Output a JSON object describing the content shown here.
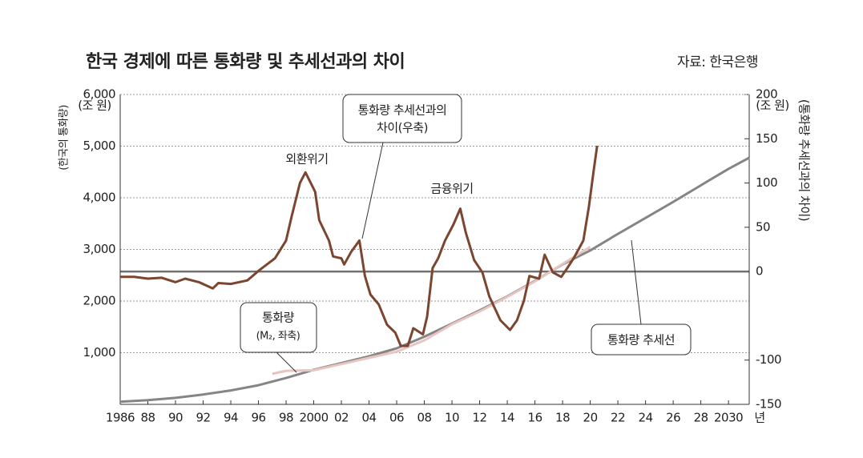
{
  "chart_data": {
    "type": "line",
    "title": "한국 경제에 따른 통화량 및 추세선과의 차이",
    "source": "자료: 한국은행",
    "y_label": "(한국의 통화량)",
    "y_unit": "(조 원)",
    "y2_label": "(통화량 추세선과의 차이)",
    "y2_unit": "(조 원)",
    "x_unit": "년",
    "annotations": [
      "외환위기",
      "금융위기"
    ],
    "callouts": [
      [
        "통화량 추세선과의",
        "차이(우축)"
      ],
      [
        "통화량",
        "(M₂, 좌축)"
      ],
      [
        "통화량 추세선"
      ]
    ],
    "xlim": [
      1986,
      2031.5
    ],
    "xticks": [
      {
        "value": 1986,
        "label": "1986"
      },
      {
        "value": 1988,
        "label": "88"
      },
      {
        "value": 1990,
        "label": "90"
      },
      {
        "value": 1992,
        "label": "92"
      },
      {
        "value": 1994,
        "label": "94"
      },
      {
        "value": 1996,
        "label": "96"
      },
      {
        "value": 1998,
        "label": "98"
      },
      2000,
      {
        "value": 2002,
        "label": "02"
      },
      {
        "value": 2004,
        "label": "04"
      },
      {
        "value": 2006,
        "label": "06"
      },
      {
        "value": 2008,
        "label": "08"
      },
      {
        "value": 2010,
        "label": "10"
      },
      {
        "value": 2012,
        "label": "12"
      },
      {
        "value": 2014,
        "label": "14"
      },
      {
        "value": 2016,
        "label": "16"
      },
      {
        "value": 2018,
        "label": "18"
      },
      {
        "value": 2020,
        "label": "20"
      },
      {
        "value": 2022,
        "label": "22"
      },
      {
        "value": 2024,
        "label": "24"
      },
      {
        "value": 2026,
        "label": "26"
      },
      {
        "value": 2028,
        "label": "28"
      },
      2030
    ],
    "ylim": [
      0,
      6000
    ],
    "yticks": [
      {
        "value": 1000,
        "label": "1,000"
      },
      {
        "value": 2000,
        "label": "2,000"
      },
      {
        "value": 3000,
        "label": "3,000"
      },
      {
        "value": 4000,
        "label": "4,000"
      },
      {
        "value": 5000,
        "label": "5,000"
      },
      {
        "value": 6000,
        "label": "6,000"
      }
    ],
    "y2lim": [
      -150,
      200
    ],
    "y2ticks": [
      200,
      150,
      100,
      50,
      0,
      -100,
      -150
    ],
    "grid": true,
    "series": [
      {
        "name": "통화량 추세선",
        "color": "#858585",
        "x": [
          1986,
          1988,
          1990,
          1992,
          1994,
          1996,
          1998,
          2000,
          2002,
          2004,
          2006,
          2008,
          2010,
          2012,
          2014,
          2016,
          2018,
          2020,
          2022,
          2024,
          2026,
          2028,
          2030,
          2031.5
        ],
        "values": [
          50,
          80,
          125,
          190,
          270,
          370,
          510,
          670,
          800,
          930,
          1085,
          1310,
          1565,
          1820,
          2090,
          2390,
          2710,
          2980,
          3300,
          3610,
          3920,
          4240,
          4560,
          4775
        ]
      },
      {
        "name": "통화량",
        "color": "#e8c4c0",
        "x": [
          1997,
          1998,
          2000,
          2002,
          2004,
          2006,
          2008,
          2010,
          2012,
          2014,
          2016,
          2018,
          2020
        ],
        "values": [
          590,
          650,
          660,
          780,
          900,
          1020,
          1240,
          1550,
          1800,
          2080,
          2380,
          2720,
          3050
        ]
      },
      {
        "name": "차이",
        "color": "#7b4530",
        "axis": "y2",
        "x": [
          1986,
          1987,
          1988,
          1989,
          1990,
          1990.7,
          1991.7,
          1992.7,
          1993.1,
          1994,
          1995.2,
          1996.1,
          1997.2,
          1998,
          1998.4,
          1999,
          1999.4,
          2000.1,
          2000.4,
          2001.1,
          2001.4,
          2002,
          2002.2,
          2002.7,
          2003.3,
          2003.7,
          2004.1,
          2004.7,
          2005.3,
          2005.9,
          2006.3,
          2006.8,
          2007.2,
          2007.9,
          2008.2,
          2008.6,
          2009,
          2009.5,
          2010.1,
          2010.6,
          2011,
          2011.6,
          2012.2,
          2012.7,
          2013.5,
          2014.2,
          2014.7,
          2015.2,
          2015.6,
          2016.3,
          2016.7,
          2017.3,
          2017.9,
          2018.3,
          2018.8,
          2019.5,
          2019.9,
          2020.2,
          2020.5
        ],
        "values": [
          -6,
          -6,
          -8,
          -7,
          -12,
          -8,
          -12,
          -19,
          -13,
          -14,
          -10,
          2,
          15,
          35,
          62,
          100,
          112,
          90,
          58,
          35,
          17,
          15,
          8,
          22,
          35,
          -5,
          -26,
          -37,
          -60,
          -69,
          -84,
          -84,
          -64,
          -71,
          -51,
          4,
          15,
          35,
          53,
          71,
          44,
          13,
          -1,
          -28,
          -55,
          -66,
          -55,
          -33,
          -5,
          -8,
          19,
          -1,
          -6,
          3,
          15,
          35,
          73,
          108,
          142
        ]
      }
    ]
  }
}
